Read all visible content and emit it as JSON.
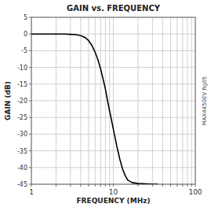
{
  "chart_data": {
    "type": "line",
    "title": "GAIN vs. FREQUENCY",
    "x_label": "FREQUENCY (MHz)",
    "y_label": "GAIN (dB)",
    "annotations": [
      "MAX4450EV fig05"
    ],
    "x": [
      1.0,
      1.5,
      2.0,
      2.5,
      3.0,
      3.5,
      4.0,
      4.5,
      5.0,
      5.5,
      6.0,
      6.5,
      7.0,
      7.5,
      8.0,
      8.5,
      9.0,
      10.0,
      11.0,
      12.0,
      13.0,
      14.0,
      15.0,
      17.0,
      20.0,
      25.0,
      30.0,
      35.0
    ],
    "values": [
      0.0,
      0.0,
      0.0,
      0.0,
      -0.1,
      -0.2,
      -0.5,
      -1.0,
      -2.0,
      -3.5,
      -5.5,
      -7.8,
      -10.5,
      -13.5,
      -16.5,
      -20.0,
      -23.0,
      -28.5,
      -33.5,
      -37.5,
      -40.5,
      -42.5,
      -43.8,
      -44.5,
      -44.8,
      -44.9,
      -45.0,
      -45.0
    ],
    "color": "#000000",
    "log": "x",
    "grid": true,
    "xlim": [
      1,
      100
    ],
    "ylim": [
      -45,
      5
    ],
    "xticks": [
      1,
      {
        "value": 2,
        "label": null
      },
      {
        "value": 3,
        "label": null
      },
      {
        "value": 4,
        "label": null
      },
      {
        "value": 5,
        "label": null
      },
      {
        "value": 6,
        "label": null
      },
      {
        "value": 7,
        "label": null
      },
      {
        "value": 8,
        "label": null
      },
      {
        "value": 9,
        "label": null
      },
      10,
      {
        "value": 20,
        "label": null
      },
      {
        "value": 30,
        "label": null
      },
      {
        "value": 40,
        "label": null
      },
      {
        "value": 50,
        "label": null
      },
      {
        "value": 60,
        "label": null
      },
      {
        "value": 70,
        "label": null
      },
      {
        "value": 80,
        "label": null
      },
      {
        "value": 90,
        "label": null
      },
      100
    ],
    "yticks": [
      5,
      0,
      -5,
      -10,
      -15,
      -20,
      -25,
      -30,
      -35,
      -40,
      -45
    ]
  }
}
